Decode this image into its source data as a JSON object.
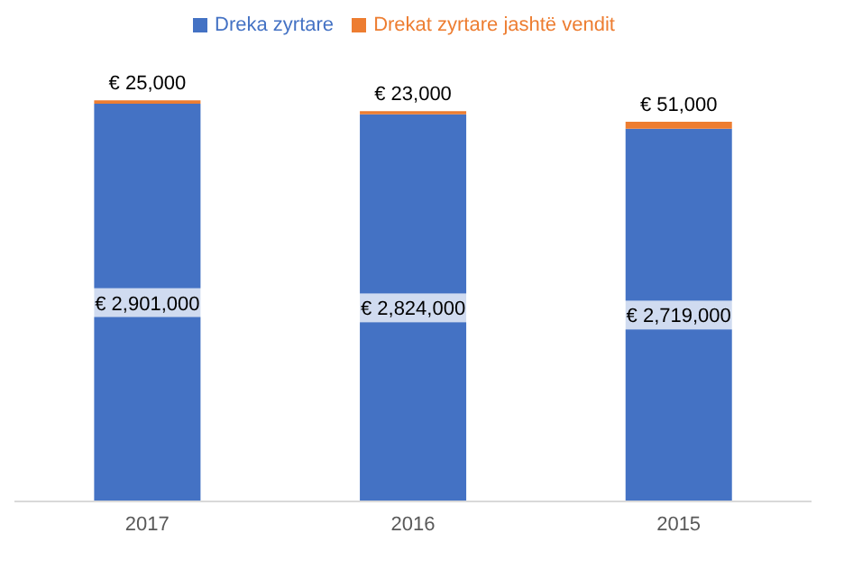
{
  "chart_data": {
    "type": "bar",
    "stacked": true,
    "categories": [
      "2017",
      "2016",
      "2015"
    ],
    "series": [
      {
        "name": "Dreka zyrtare",
        "color": "#4472c4",
        "values": [
          2901000,
          2824000,
          2719000
        ],
        "value_labels": [
          "€ 2,901,000",
          "€ 2,824,000",
          "€ 2,719,000"
        ]
      },
      {
        "name": "Drekat zyrtare jashtë vendit",
        "color": "#ed7d31",
        "values": [
          25000,
          23000,
          51000
        ],
        "value_labels": [
          "€ 25,000",
          "€ 23,000",
          "€ 51,000"
        ]
      }
    ],
    "tick_labels": "x",
    "legend": "top"
  }
}
